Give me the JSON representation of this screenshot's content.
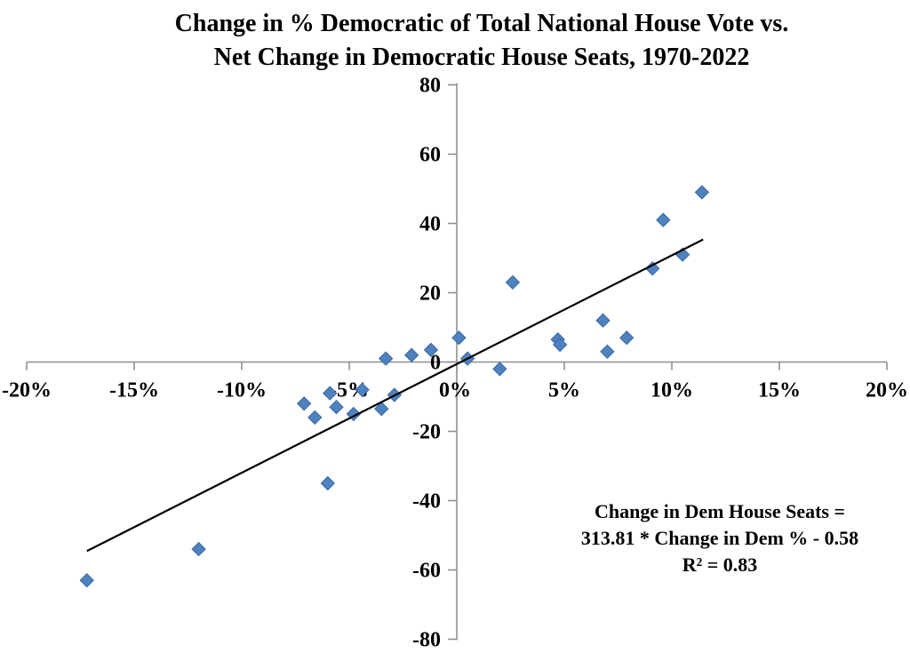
{
  "chart_data": {
    "type": "scatter",
    "title_lines": [
      "Change in % Democratic of Total National House Vote vs.",
      "Net Change in Democratic House Seats, 1970-2022"
    ],
    "x_axis": {
      "label": "Change in % Democratic of Total National House Vote",
      "min": -20,
      "max": 20,
      "tick_step": 5,
      "tick_labels": [
        "-20%",
        "-15%",
        "-10%",
        "-5%",
        "0%",
        "5%",
        "10%",
        "15%",
        "20%"
      ]
    },
    "y_axis": {
      "label": "Net Change in Democratic House Seats",
      "min": -80,
      "max": 80,
      "tick_step": 20,
      "tick_labels": [
        "-80",
        "-60",
        "-40",
        "-20",
        "0",
        "20",
        "40",
        "60",
        "80"
      ]
    },
    "grid": false,
    "legend_position": "none",
    "points": [
      {
        "x": -17.2,
        "y": -63
      },
      {
        "x": -12.0,
        "y": -54
      },
      {
        "x": -7.1,
        "y": -12
      },
      {
        "x": -6.6,
        "y": -16
      },
      {
        "x": -6.0,
        "y": -35
      },
      {
        "x": -5.9,
        "y": -9
      },
      {
        "x": -5.6,
        "y": -13
      },
      {
        "x": -4.8,
        "y": -15
      },
      {
        "x": -4.4,
        "y": -8
      },
      {
        "x": -3.5,
        "y": -13.5
      },
      {
        "x": -3.3,
        "y": 1
      },
      {
        "x": -2.9,
        "y": -9.5
      },
      {
        "x": -2.1,
        "y": 2
      },
      {
        "x": -1.2,
        "y": 3.5
      },
      {
        "x": 0.1,
        "y": 7
      },
      {
        "x": 0.5,
        "y": 1
      },
      {
        "x": 2.0,
        "y": -2
      },
      {
        "x": 2.6,
        "y": 23
      },
      {
        "x": 4.7,
        "y": 6.5
      },
      {
        "x": 4.8,
        "y": 5
      },
      {
        "x": 6.8,
        "y": 12
      },
      {
        "x": 7.0,
        "y": 3
      },
      {
        "x": 7.9,
        "y": 7
      },
      {
        "x": 9.1,
        "y": 27
      },
      {
        "x": 9.6,
        "y": 41
      },
      {
        "x": 10.5,
        "y": 31
      },
      {
        "x": 11.4,
        "y": 49
      }
    ],
    "trendline": {
      "slope_per_pct": 3.1381,
      "intercept": -0.58,
      "x_start": -17.2,
      "x_end": 11.45
    },
    "annotation": {
      "lines": [
        "Change in Dem House Seats =",
        "313.81 * Change in Dem % - 0.58",
        "R² = 0.83"
      ]
    },
    "colors": {
      "marker_fill": "#4f81bd",
      "marker_stroke": "#3a6aa6",
      "axis": "#8f8f8f",
      "trendline": "#000000",
      "text": "#000000",
      "background": "#ffffff"
    }
  }
}
